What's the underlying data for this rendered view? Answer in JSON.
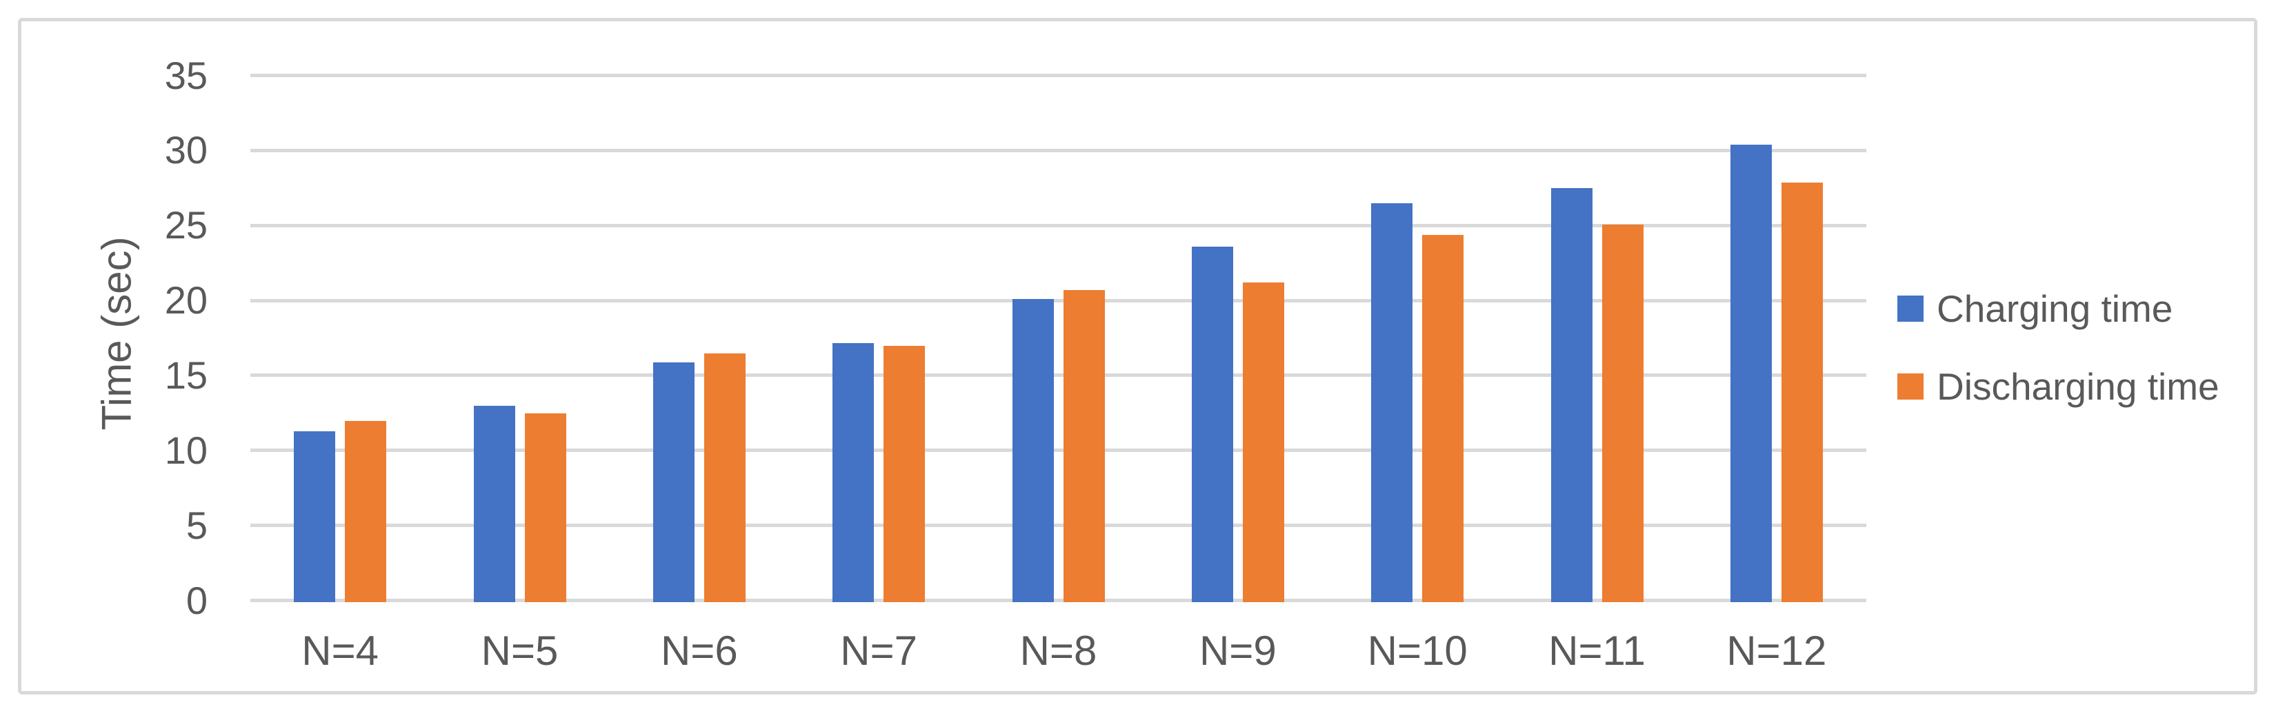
{
  "chart_data": {
    "type": "bar",
    "title": "",
    "xlabel": "",
    "ylabel": "Time (sec)",
    "categories": [
      "N=4",
      "N=5",
      "N=6",
      "N=7",
      "N=8",
      "N=9",
      "N=10",
      "N=11",
      "N=12"
    ],
    "series": [
      {
        "name": "Charging time",
        "color": "#4472C4",
        "values": [
          11.3,
          13.0,
          15.9,
          17.2,
          20.1,
          23.6,
          26.5,
          27.5,
          30.4
        ]
      },
      {
        "name": "Discharging time",
        "color": "#ED7D31",
        "values": [
          12.0,
          12.5,
          16.5,
          17.0,
          20.7,
          21.2,
          24.4,
          25.1,
          27.9
        ]
      }
    ],
    "ylim": [
      0,
      35
    ],
    "yticks": [
      0,
      5,
      10,
      15,
      20,
      25,
      30,
      35
    ],
    "grid": "horizontal",
    "legend_position": "right"
  },
  "colors": {
    "background": "#FFFFFF",
    "border": "#D9D9D9",
    "gridline": "#D9D9D9",
    "text": "#595959"
  }
}
